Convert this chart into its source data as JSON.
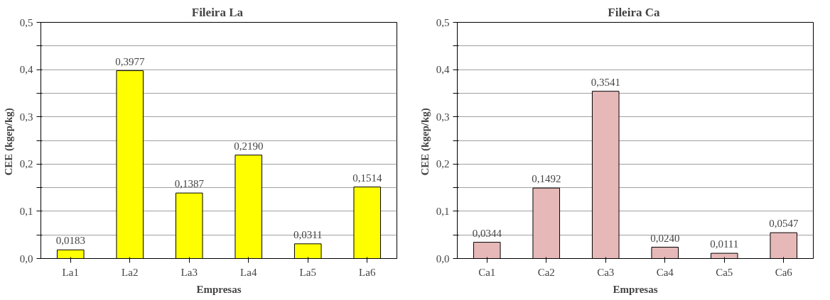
{
  "chart_data": [
    {
      "type": "bar",
      "title": "Fileira  La",
      "xlabel": "Empresas",
      "ylabel": "CEE  (kgep/kg)",
      "categories": [
        "La1",
        "La2",
        "La3",
        "La4",
        "La5",
        "La6"
      ],
      "values": [
        0.0183,
        0.3977,
        0.1387,
        0.219,
        0.0311,
        0.1514
      ],
      "value_labels": [
        "0,0183",
        "0,3977",
        "0,1387",
        "0,2190",
        "0,0311",
        "0,1514"
      ],
      "color": "#ffff00",
      "ylim": [
        0,
        0.5
      ],
      "yticks": [
        {
          "value": 0,
          "label": "0,0"
        },
        {
          "value": 0.05,
          "label": null
        },
        {
          "value": 0.1,
          "label": "0,1"
        },
        {
          "value": 0.15,
          "label": null
        },
        {
          "value": 0.2,
          "label": "0,2"
        },
        {
          "value": 0.25,
          "label": null
        },
        {
          "value": 0.3,
          "label": "0,3"
        },
        {
          "value": 0.35,
          "label": null
        },
        {
          "value": 0.4,
          "label": "0,4"
        },
        {
          "value": 0.45,
          "label": null
        },
        {
          "value": 0.5,
          "label": "0,5"
        }
      ],
      "grid": "y"
    },
    {
      "type": "bar",
      "title": "Fileira  Ca",
      "xlabel": "Empresas",
      "ylabel": "CEE  (kgep/kg)",
      "categories": [
        "Ca1",
        "Ca2",
        "Ca3",
        "Ca4",
        "Ca5",
        "Ca6"
      ],
      "values": [
        0.0344,
        0.1492,
        0.3541,
        0.024,
        0.0111,
        0.0547
      ],
      "value_labels": [
        "0,0344",
        "0,1492",
        "0,3541",
        "0,0240",
        "0,0111",
        "0,0547"
      ],
      "color": "#e6b9b8",
      "ylim": [
        0,
        0.5
      ],
      "yticks": [
        {
          "value": 0,
          "label": "0,0"
        },
        {
          "value": 0.05,
          "label": null
        },
        {
          "value": 0.1,
          "label": "0,1"
        },
        {
          "value": 0.15,
          "label": null
        },
        {
          "value": 0.2,
          "label": "0,2"
        },
        {
          "value": 0.25,
          "label": null
        },
        {
          "value": 0.3,
          "label": "0,3"
        },
        {
          "value": 0.35,
          "label": null
        },
        {
          "value": 0.4,
          "label": "0,4"
        },
        {
          "value": 0.45,
          "label": null
        },
        {
          "value": 0.5,
          "label": "0,5"
        }
      ],
      "grid": "y"
    }
  ]
}
